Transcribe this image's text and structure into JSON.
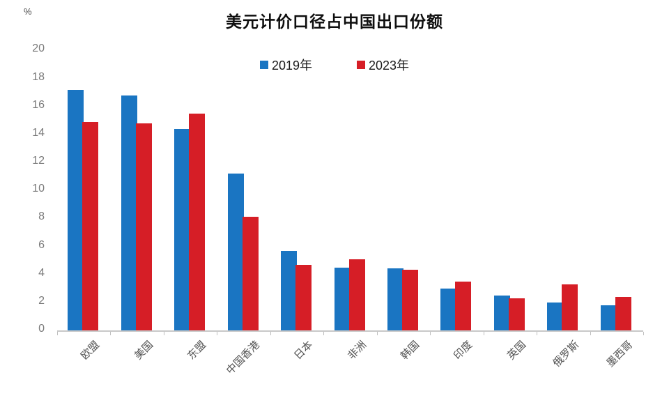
{
  "header": {
    "title": "美元计价口径占中国出口份额",
    "unit_label": "%"
  },
  "chart_data": {
    "type": "bar",
    "title": "美元计价口径占中国出口份额",
    "unit": "%",
    "categories": [
      "欧盟",
      "美国",
      "东盟",
      "中国香港",
      "日本",
      "非洲",
      "韩国",
      "印度",
      "英国",
      "俄罗斯",
      "墨西哥"
    ],
    "series": [
      {
        "name": "2019年",
        "color": "#1a75c2",
        "values": [
          17.2,
          16.8,
          14.4,
          11.2,
          5.7,
          4.5,
          4.45,
          3.0,
          2.5,
          2.0,
          1.8
        ]
      },
      {
        "name": "2023年",
        "color": "#d61e26",
        "values": [
          14.9,
          14.8,
          15.5,
          8.1,
          4.7,
          5.1,
          4.35,
          3.5,
          2.3,
          3.3,
          2.4
        ]
      }
    ],
    "ylim": [
      0,
      20
    ],
    "ytick_step": 2,
    "grid": false,
    "legend_position": "top-center",
    "xlabel": "",
    "ylabel": "%"
  },
  "colors": {
    "axis_line": "#c8c8c8",
    "tick_mark": "#bfbfbf",
    "ytick_label": "#7a7a7a",
    "xtick_label": "#545454",
    "title": "#0f0f0f"
  }
}
